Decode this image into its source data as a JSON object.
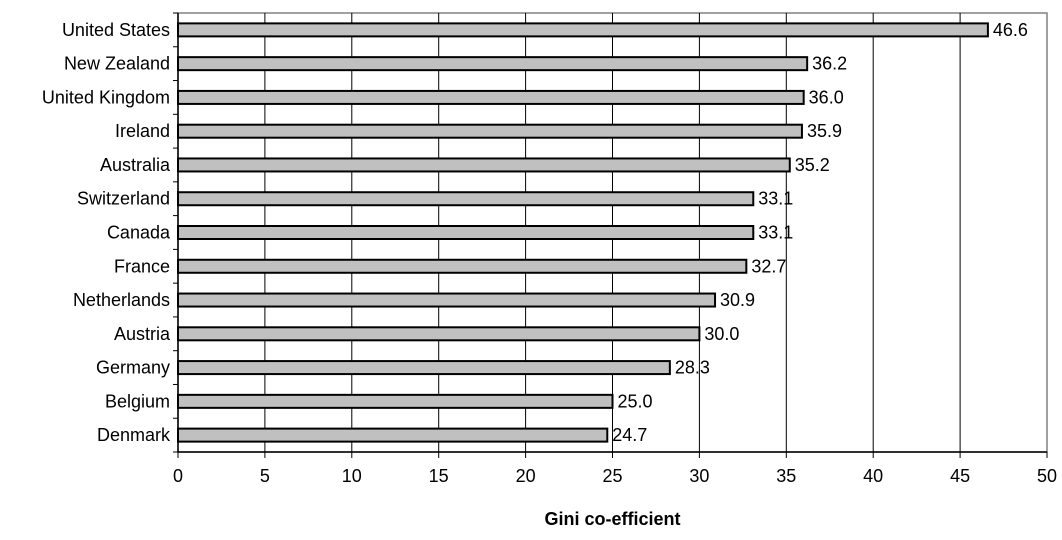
{
  "chart_data": {
    "type": "bar",
    "orientation": "horizontal",
    "categories": [
      "United States",
      "New Zealand",
      "United Kingdom",
      "Ireland",
      "Australia",
      "Switzerland",
      "Canada",
      "France",
      "Netherlands",
      "Austria",
      "Germany",
      "Belgium",
      "Denmark"
    ],
    "values": [
      46.6,
      36.2,
      36.0,
      35.9,
      35.2,
      33.1,
      33.1,
      32.7,
      30.9,
      30.0,
      28.3,
      25.0,
      24.7
    ],
    "value_labels": [
      "46.6",
      "36.2",
      "36.0",
      "35.9",
      "35.2",
      "33.1",
      "33.1",
      "32.7",
      "30.9",
      "30.0",
      "28.3",
      "25.0",
      "24.7"
    ],
    "title": "",
    "xlabel": "Gini co-efficient",
    "ylabel": "",
    "xlim": [
      0,
      50
    ],
    "xticks": [
      0,
      5,
      10,
      15,
      20,
      25,
      30,
      35,
      40,
      45,
      50
    ],
    "grid": "vertical",
    "legend": "none",
    "colors": {
      "bar_fill": "#c0c0c0",
      "bar_stroke": "#000000",
      "grid": "#000000",
      "plot_border": "#808080"
    }
  }
}
